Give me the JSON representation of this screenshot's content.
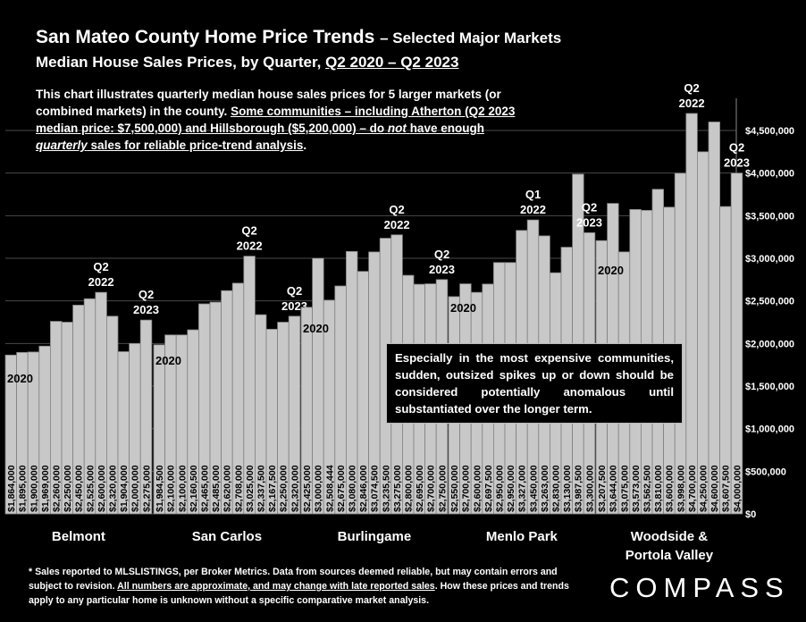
{
  "header": {
    "title_main": "San Mateo County Home Price Trends",
    "title_sub": "– Selected Major Markets",
    "subtitle_prefix": "Median House Sales Prices, by Quarter,",
    "subtitle_range": "Q2 2020 – Q2 2023"
  },
  "intro": {
    "part1": "This chart illustrates quarterly median house sales prices for 5 larger markets (or combined markets) in the county.",
    "part2_a": "Some communities – including Atherton (Q2 2023 median price: $7,500,000) and Hillsborough ($5,200,000) – do",
    "part2_not": "not",
    "part2_b": "have enough",
    "part2_quarterly": "quarterly",
    "part2_c": "sales for reliable price-trend analysis",
    "part3": "."
  },
  "callout": {
    "text": "Especially in the most expensive communities, sudden, outsized spikes up or down should be considered potentially anomalous until substantiated over the longer term."
  },
  "footnote": {
    "a": "* Sales reported to MLSLISTINGS, per Broker Metrics. Data from sources deemed reliable, but may contain errors and subject to revision.",
    "b": "All numbers are approximate, and may change with late reported sales",
    "c": ". How these prices and trends apply to any particular home is unknown without a specific comparative market analysis."
  },
  "logo": {
    "text": "COMPASS"
  },
  "colors": {
    "background": "#000000",
    "bar": "#c8c8c8",
    "bar_border": "#808080",
    "text": "#ffffff",
    "grid": "#4a4a4a"
  },
  "chart_data": {
    "type": "bar",
    "ylabel": "",
    "ylim": [
      0,
      4500000
    ],
    "yticks": [
      {
        "value": 0,
        "label": "$0"
      },
      {
        "value": 500000,
        "label": "$500,000"
      },
      {
        "value": 1000000,
        "label": "$1,000,000"
      },
      {
        "value": 1500000,
        "label": "$1,500,000"
      },
      {
        "value": 2000000,
        "label": "$2,000,000"
      },
      {
        "value": 2500000,
        "label": "$2,500,000"
      },
      {
        "value": 3000000,
        "label": "$3,000,000"
      },
      {
        "value": 3500000,
        "label": "$3,500,000"
      },
      {
        "value": 4000000,
        "label": "$4,000,000"
      },
      {
        "value": 4500000,
        "label": "$4,500,000"
      }
    ],
    "grid": "horizontal",
    "groups": [
      {
        "name": "Belmont",
        "values": [
          1864000,
          1895000,
          1900000,
          1969000,
          2260000,
          2250000,
          2450000,
          2525000,
          2600000,
          2320000,
          1904000,
          2000000,
          2275000
        ],
        "labels": [
          "$1,864,000",
          "$1,895,000",
          "$1,900,000",
          "$1,969,000",
          "$2,260,000",
          "$2,250,000",
          "$2,450,000",
          "$2,525,000",
          "$2,600,000",
          "$2,320,000",
          "$1,904,000",
          "$2,000,000",
          "$2,275,000"
        ],
        "annotations": [
          {
            "bar": 0,
            "lines": [
              "2020"
            ]
          },
          {
            "bar": 8,
            "lines": [
              "Q2",
              "2022"
            ]
          },
          {
            "bar": 12,
            "lines": [
              "Q2",
              "2023"
            ]
          }
        ]
      },
      {
        "name": "San Carlos",
        "values": [
          1984500,
          2100000,
          2100000,
          2160500,
          2465000,
          2485000,
          2620000,
          2708000,
          3025000,
          2337500,
          2167500,
          2250000,
          2320000
        ],
        "labels": [
          "$1,984,500",
          "$2,100,000",
          "$2,100,000",
          "$2,160,500",
          "$2,465,000",
          "$2,485,000",
          "$2,620,000",
          "$2,708,000",
          "$3,025,000",
          "$2,337,500",
          "$2,167,500",
          "$2,250,000",
          "$2,320,000"
        ],
        "annotations": [
          {
            "bar": 0,
            "lines": [
              "2020"
            ]
          },
          {
            "bar": 8,
            "lines": [
              "Q2",
              "2022"
            ]
          },
          {
            "bar": 12,
            "lines": [
              "Q2",
              "2023"
            ]
          }
        ]
      },
      {
        "name": "Burlingame",
        "values": [
          2425000,
          3000000,
          2508444,
          2675000,
          3080000,
          2846000,
          3074500,
          3235500,
          3275000,
          2800000,
          2695000,
          2700000,
          2750000
        ],
        "labels": [
          "$2,425,000",
          "$3,000,000",
          "$2,508,444",
          "$2,675,000",
          "$3,080,000",
          "$2,846,000",
          "$3,074,500",
          "$3,235,500",
          "$3,275,000",
          "$2,800,000",
          "$2,695,000",
          "$2,700,000",
          "$2,750,000"
        ],
        "annotations": [
          {
            "bar": 0,
            "lines": [
              "2020"
            ]
          },
          {
            "bar": 8,
            "lines": [
              "Q2",
              "2022"
            ]
          },
          {
            "bar": 12,
            "lines": [
              "Q2",
              "2023"
            ]
          }
        ]
      },
      {
        "name": "Menlo Park",
        "values": [
          2550000,
          2700000,
          2600000,
          2697500,
          2950000,
          2950000,
          3327000,
          3450000,
          3263000,
          2830000,
          3130000,
          3987500,
          3300000
        ],
        "labels": [
          "$2,550,000",
          "$2,700,000",
          "$2,600,000",
          "$2,697,500",
          "$2,950,000",
          "$2,950,000",
          "$3,327,000",
          "$3,450,000",
          "$3,263,000",
          "$2,830,000",
          "$3,130,000",
          "$3,987,500",
          "$3,300,000"
        ],
        "annotations": [
          {
            "bar": 0,
            "lines": [
              "2020"
            ]
          },
          {
            "bar": 7,
            "lines": [
              "Q1",
              "2022"
            ]
          },
          {
            "bar": 12,
            "lines": [
              "Q2",
              "2023"
            ]
          }
        ]
      },
      {
        "name": "Woodside & Portola Valley",
        "name_lines": [
          "Woodside &",
          "Portola Valley"
        ],
        "values": [
          3207500,
          3644000,
          3075000,
          3573000,
          3562500,
          3810000,
          3600000,
          3998000,
          4700000,
          4250000,
          4600000,
          3607500,
          4000000
        ],
        "labels": [
          "$3,207,500",
          "$3,644,000",
          "$3,075,000",
          "$3,573,000",
          "$3,562,500",
          "$3,810,000",
          "$3,600,000",
          "$3,998,000",
          "$4,700,000",
          "$4,250,000",
          "$4,600,000",
          "$3,607,500",
          "$4,000,000"
        ],
        "annotations": [
          {
            "bar": 0,
            "lines": [
              "2020"
            ]
          },
          {
            "bar": 8,
            "lines": [
              "Q2",
              "2022"
            ]
          },
          {
            "bar": 12,
            "lines": [
              "Q2",
              "2023"
            ]
          }
        ]
      }
    ]
  }
}
